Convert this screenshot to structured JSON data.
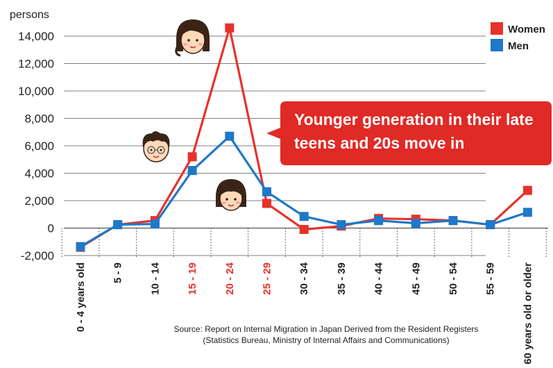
{
  "chart_data": {
    "type": "line",
    "ylabel": "persons",
    "ylim": [
      -2000,
      15000
    ],
    "yticks": [
      -2000,
      0,
      2000,
      4000,
      6000,
      8000,
      10000,
      12000,
      14000
    ],
    "ytick_labels": [
      "-2,000",
      "0",
      "2,000",
      "4,000",
      "6,000",
      "8,000",
      "10,000",
      "12,000",
      "14,000"
    ],
    "grid": true,
    "legend": "top-right",
    "categories": [
      "0 - 4 years old",
      "5 - 9",
      "10 - 14",
      "15 - 19",
      "20 - 24",
      "25 - 29",
      "30 - 34",
      "35 - 39",
      "40 - 44",
      "45 - 49",
      "50 - 54",
      "55 - 59",
      "60 years old or older"
    ],
    "highlighted_categories": [
      "15 - 19",
      "20 - 24",
      "25 - 29"
    ],
    "series": [
      {
        "name": "Women",
        "color": "#e8312c",
        "values": [
          -1400,
          250,
          550,
          5200,
          14600,
          1800,
          -100,
          150,
          700,
          650,
          550,
          250,
          2750
        ]
      },
      {
        "name": "Men",
        "color": "#1f78c8",
        "values": [
          -1350,
          250,
          300,
          4200,
          6700,
          2650,
          850,
          250,
          550,
          350,
          550,
          250,
          1150
        ]
      }
    ],
    "annotation": [
      "Younger generation in their late",
      "teens and 20s move in"
    ],
    "source": [
      "Source: Report on Internal Migration in Japan Derived from the Resident Registers",
      "(Statistics Bureau, Ministry of Internal Affairs and Communications)"
    ]
  },
  "colors": {
    "highlight_label": "#e8312c",
    "normal_label": "#222222",
    "callout_bg": "#e02a26",
    "grid": "#555555"
  },
  "icons": [
    "woman-face-icon",
    "man-face-icon",
    "girl-face-icon"
  ]
}
